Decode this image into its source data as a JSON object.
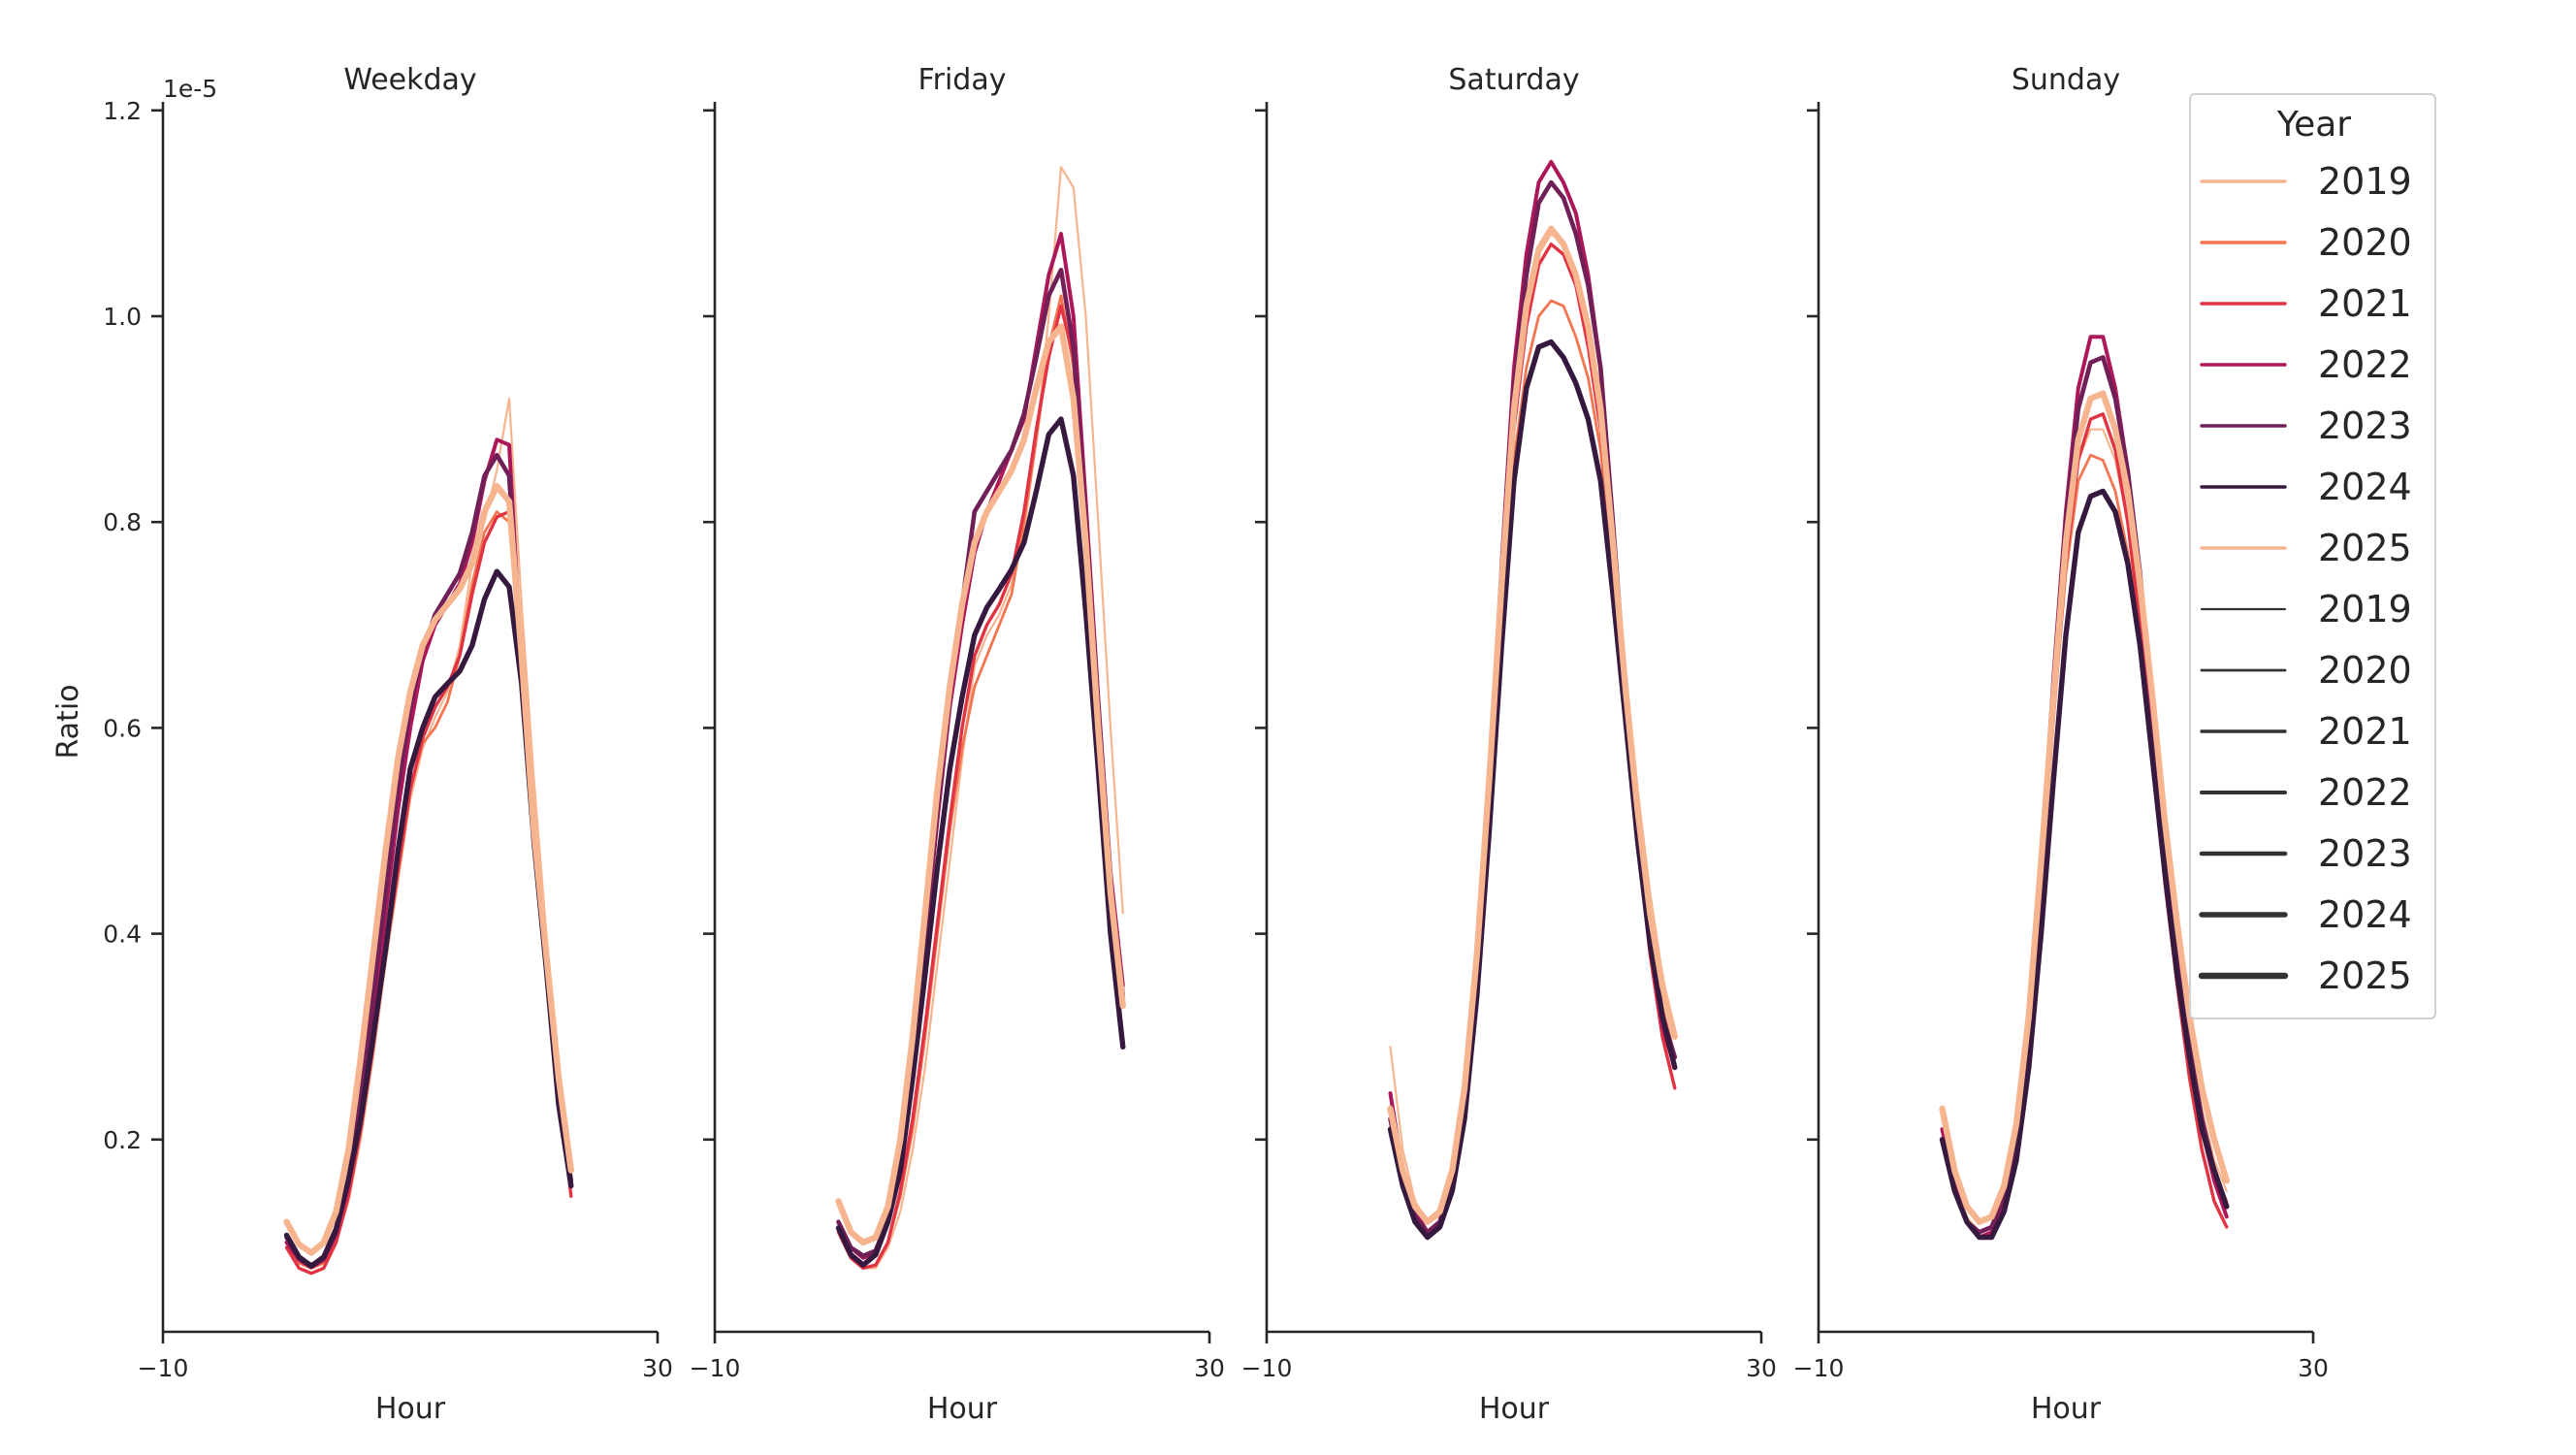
{
  "chart_data": {
    "type": "line",
    "offset_label": "1e-5",
    "ylabel": "Ratio",
    "xlabel": "Hour",
    "xlim": [
      -10,
      30
    ],
    "ylim": [
      0.015,
      1.2
    ],
    "xticks": [
      -10,
      30
    ],
    "yticks": [
      0.2,
      0.4,
      0.6,
      0.8,
      1.0,
      1.2
    ],
    "ytick_labels": [
      "0.2",
      "0.4",
      "0.6",
      "0.8",
      "1.0",
      "1.2"
    ],
    "xtick_labels": [
      "−10",
      "30"
    ],
    "grid": false,
    "hours": [
      0,
      1,
      2,
      3,
      4,
      5,
      6,
      7,
      8,
      9,
      10,
      11,
      12,
      13,
      14,
      15,
      16,
      17,
      18,
      19,
      20,
      21,
      22,
      23
    ],
    "colors": {
      "2019": "#f6b48f",
      "2020": "#f37651",
      "2021": "#e13342",
      "2022": "#ad1759",
      "2023": "#701f57",
      "2024": "#35193e",
      "2025": "#f6b48f"
    },
    "legend": {
      "title": "Year",
      "position": "top-right",
      "hue_entries": [
        "2019",
        "2020",
        "2021",
        "2022",
        "2023",
        "2024",
        "2025"
      ],
      "size_entries": [
        "2019",
        "2020",
        "2021",
        "2022",
        "2023",
        "2024",
        "2025"
      ]
    },
    "panels": [
      {
        "title": "Weekday",
        "series": [
          {
            "name": "2019",
            "values": [
              0.1,
              0.08,
              0.075,
              0.08,
              0.1,
              0.14,
              0.2,
              0.28,
              0.37,
              0.45,
              0.53,
              0.58,
              0.61,
              0.635,
              0.68,
              0.76,
              0.8,
              0.85,
              0.92,
              0.72,
              0.55,
              0.4,
              0.27,
              0.17
            ]
          },
          {
            "name": "2020",
            "values": [
              0.1,
              0.08,
              0.075,
              0.08,
              0.105,
              0.15,
              0.215,
              0.3,
              0.39,
              0.47,
              0.54,
              0.585,
              0.6,
              0.625,
              0.67,
              0.74,
              0.79,
              0.81,
              0.8,
              0.66,
              0.51,
              0.39,
              0.26,
              0.16
            ]
          },
          {
            "name": "2021",
            "values": [
              0.095,
              0.075,
              0.07,
              0.075,
              0.1,
              0.145,
              0.21,
              0.29,
              0.38,
              0.46,
              0.54,
              0.59,
              0.62,
              0.64,
              0.67,
              0.73,
              0.78,
              0.805,
              0.81,
              0.65,
              0.5,
              0.38,
              0.25,
              0.145
            ]
          },
          {
            "name": "2022",
            "values": [
              0.1,
              0.083,
              0.076,
              0.083,
              0.108,
              0.155,
              0.225,
              0.32,
              0.42,
              0.52,
              0.6,
              0.665,
              0.7,
              0.72,
              0.74,
              0.78,
              0.84,
              0.88,
              0.875,
              0.66,
              0.49,
              0.37,
              0.24,
              0.155
            ]
          },
          {
            "name": "2023",
            "values": [
              0.105,
              0.085,
              0.078,
              0.085,
              0.11,
              0.16,
              0.24,
              0.34,
              0.44,
              0.54,
              0.62,
              0.675,
              0.71,
              0.73,
              0.75,
              0.79,
              0.845,
              0.865,
              0.845,
              0.66,
              0.49,
              0.37,
              0.24,
              0.16
            ]
          },
          {
            "name": "2024",
            "values": [
              0.107,
              0.086,
              0.077,
              0.086,
              0.113,
              0.161,
              0.22,
              0.3,
              0.384,
              0.48,
              0.56,
              0.6,
              0.63,
              0.643,
              0.655,
              0.68,
              0.725,
              0.752,
              0.737,
              0.643,
              0.49,
              0.366,
              0.234,
              0.155
            ]
          },
          {
            "name": "2025",
            "values": [
              0.12,
              0.098,
              0.09,
              0.1,
              0.13,
              0.19,
              0.28,
              0.38,
              0.48,
              0.57,
              0.635,
              0.68,
              0.705,
              0.72,
              0.735,
              0.76,
              0.81,
              0.835,
              0.82,
              0.67,
              0.5,
              0.38,
              0.26,
              0.17
            ]
          }
        ]
      },
      {
        "title": "Friday",
        "series": [
          {
            "name": "2019",
            "values": [
              0.11,
              0.085,
              0.075,
              0.075,
              0.095,
              0.13,
              0.19,
              0.27,
              0.37,
              0.47,
              0.57,
              0.66,
              0.69,
              0.71,
              0.74,
              0.79,
              0.88,
              1.0,
              1.145,
              1.125,
              1.0,
              0.8,
              0.6,
              0.42
            ]
          },
          {
            "name": "2020",
            "values": [
              0.11,
              0.085,
              0.075,
              0.078,
              0.1,
              0.145,
              0.21,
              0.3,
              0.4,
              0.5,
              0.58,
              0.64,
              0.67,
              0.7,
              0.73,
              0.8,
              0.88,
              0.97,
              1.02,
              0.95,
              0.8,
              0.62,
              0.46,
              0.35
            ]
          },
          {
            "name": "2021",
            "values": [
              0.11,
              0.085,
              0.075,
              0.078,
              0.1,
              0.15,
              0.22,
              0.31,
              0.41,
              0.51,
              0.6,
              0.67,
              0.7,
              0.72,
              0.75,
              0.81,
              0.89,
              0.96,
              1.01,
              0.96,
              0.8,
              0.62,
              0.45,
              0.33
            ]
          },
          {
            "name": "2022",
            "values": [
              0.12,
              0.095,
              0.085,
              0.09,
              0.12,
              0.18,
              0.27,
              0.39,
              0.51,
              0.62,
              0.7,
              0.77,
              0.81,
              0.84,
              0.87,
              0.9,
              0.97,
              1.04,
              1.08,
              1.0,
              0.82,
              0.63,
              0.46,
              0.35
            ]
          },
          {
            "name": "2023",
            "values": [
              0.12,
              0.095,
              0.087,
              0.092,
              0.122,
              0.185,
              0.28,
              0.4,
              0.52,
              0.63,
              0.72,
              0.81,
              0.83,
              0.85,
              0.87,
              0.905,
              0.96,
              1.02,
              1.045,
              0.97,
              0.8,
              0.62,
              0.45,
              0.34
            ]
          },
          {
            "name": "2024",
            "values": [
              0.114,
              0.088,
              0.078,
              0.088,
              0.12,
              0.17,
              0.26,
              0.36,
              0.465,
              0.56,
              0.63,
              0.69,
              0.717,
              0.735,
              0.754,
              0.78,
              0.83,
              0.885,
              0.9,
              0.845,
              0.713,
              0.56,
              0.4,
              0.29
            ]
          },
          {
            "name": "2025",
            "values": [
              0.14,
              0.11,
              0.1,
              0.105,
              0.135,
              0.2,
              0.3,
              0.42,
              0.54,
              0.64,
              0.72,
              0.78,
              0.81,
              0.83,
              0.85,
              0.88,
              0.93,
              0.975,
              0.99,
              0.92,
              0.78,
              0.6,
              0.44,
              0.33
            ]
          }
        ]
      },
      {
        "title": "Saturday",
        "series": [
          {
            "name": "2019",
            "values": [
              0.29,
              0.19,
              0.14,
              0.12,
              0.125,
              0.16,
              0.23,
              0.36,
              0.53,
              0.73,
              0.9,
              1.0,
              1.06,
              1.08,
              1.07,
              1.04,
              0.99,
              0.91,
              0.79,
              0.66,
              0.54,
              0.44,
              0.36,
              0.3
            ]
          },
          {
            "name": "2020",
            "values": [
              0.22,
              0.16,
              0.125,
              0.11,
              0.12,
              0.16,
              0.23,
              0.355,
              0.52,
              0.7,
              0.86,
              0.95,
              1.0,
              1.015,
              1.01,
              0.98,
              0.94,
              0.87,
              0.75,
              0.62,
              0.5,
              0.4,
              0.33,
              0.28
            ]
          },
          {
            "name": "2021",
            "values": [
              0.21,
              0.155,
              0.12,
              0.11,
              0.12,
              0.16,
              0.235,
              0.36,
              0.53,
              0.72,
              0.89,
              0.99,
              1.05,
              1.07,
              1.06,
              1.03,
              0.97,
              0.89,
              0.76,
              0.62,
              0.49,
              0.38,
              0.3,
              0.25
            ]
          },
          {
            "name": "2022",
            "values": [
              0.245,
              0.17,
              0.13,
              0.11,
              0.12,
              0.16,
              0.24,
              0.37,
              0.55,
              0.76,
              0.95,
              1.06,
              1.13,
              1.15,
              1.13,
              1.1,
              1.04,
              0.95,
              0.8,
              0.64,
              0.5,
              0.39,
              0.31,
              0.27
            ]
          },
          {
            "name": "2023",
            "values": [
              0.22,
              0.16,
              0.125,
              0.11,
              0.12,
              0.16,
              0.235,
              0.365,
              0.54,
              0.75,
              0.93,
              1.04,
              1.11,
              1.13,
              1.115,
              1.08,
              1.03,
              0.95,
              0.8,
              0.64,
              0.5,
              0.4,
              0.32,
              0.28
            ]
          },
          {
            "name": "2024",
            "values": [
              0.21,
              0.155,
              0.12,
              0.105,
              0.115,
              0.15,
              0.22,
              0.34,
              0.5,
              0.68,
              0.84,
              0.93,
              0.97,
              0.975,
              0.96,
              0.935,
              0.9,
              0.84,
              0.73,
              0.61,
              0.49,
              0.39,
              0.32,
              0.27
            ]
          },
          {
            "name": "2025",
            "values": [
              0.23,
              0.17,
              0.135,
              0.12,
              0.13,
              0.17,
              0.25,
              0.38,
              0.55,
              0.74,
              0.91,
              1.01,
              1.065,
              1.085,
              1.07,
              1.04,
              0.99,
              0.91,
              0.78,
              0.64,
              0.52,
              0.42,
              0.35,
              0.3
            ]
          }
        ]
      },
      {
        "title": "Sunday",
        "series": [
          {
            "name": "2019",
            "values": [
              0.22,
              0.16,
              0.125,
              0.11,
              0.115,
              0.145,
              0.205,
              0.31,
              0.46,
              0.62,
              0.77,
              0.86,
              0.89,
              0.89,
              0.86,
              0.8,
              0.71,
              0.6,
              0.49,
              0.39,
              0.3,
              0.23,
              0.18,
              0.15
            ]
          },
          {
            "name": "2020",
            "values": [
              0.21,
              0.155,
              0.12,
              0.11,
              0.115,
              0.145,
              0.2,
              0.3,
              0.45,
              0.61,
              0.75,
              0.84,
              0.865,
              0.86,
              0.83,
              0.77,
              0.69,
              0.58,
              0.47,
              0.37,
              0.29,
              0.22,
              0.17,
              0.14
            ]
          },
          {
            "name": "2021",
            "values": [
              0.21,
              0.155,
              0.12,
              0.105,
              0.11,
              0.14,
              0.2,
              0.3,
              0.45,
              0.61,
              0.76,
              0.86,
              0.9,
              0.905,
              0.87,
              0.8,
              0.7,
              0.58,
              0.45,
              0.35,
              0.26,
              0.19,
              0.14,
              0.115
            ]
          },
          {
            "name": "2022",
            "values": [
              0.21,
              0.155,
              0.12,
              0.105,
              0.11,
              0.14,
              0.2,
              0.31,
              0.47,
              0.65,
              0.81,
              0.93,
              0.98,
              0.98,
              0.93,
              0.85,
              0.74,
              0.61,
              0.48,
              0.37,
              0.28,
              0.21,
              0.16,
              0.125
            ]
          },
          {
            "name": "2023",
            "values": [
              0.2,
              0.15,
              0.12,
              0.11,
              0.115,
              0.145,
              0.205,
              0.31,
              0.47,
              0.64,
              0.8,
              0.91,
              0.955,
              0.96,
              0.92,
              0.85,
              0.75,
              0.62,
              0.49,
              0.38,
              0.29,
              0.22,
              0.17,
              0.135
            ]
          },
          {
            "name": "2024",
            "values": [
              0.2,
              0.15,
              0.12,
              0.105,
              0.105,
              0.13,
              0.18,
              0.27,
              0.4,
              0.55,
              0.69,
              0.79,
              0.825,
              0.83,
              0.81,
              0.76,
              0.68,
              0.57,
              0.46,
              0.36,
              0.28,
              0.21,
              0.17,
              0.135
            ]
          },
          {
            "name": "2025",
            "values": [
              0.23,
              0.17,
              0.135,
              0.12,
              0.125,
              0.155,
              0.215,
              0.32,
              0.47,
              0.63,
              0.78,
              0.88,
              0.92,
              0.925,
              0.89,
              0.83,
              0.74,
              0.63,
              0.51,
              0.41,
              0.32,
              0.25,
              0.2,
              0.16
            ]
          }
        ]
      }
    ]
  }
}
